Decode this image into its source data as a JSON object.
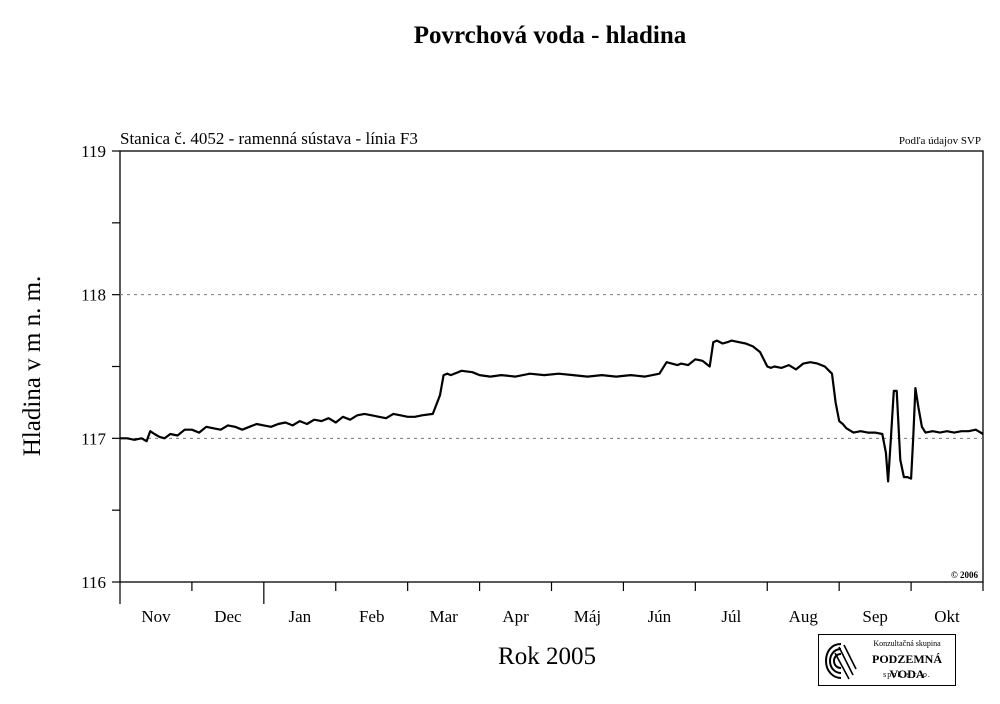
{
  "page_title": "Povrchová voda - hladina",
  "logo": {
    "line1": "Konzultačná skupina",
    "line2": "PODZEMNÁ VODA",
    "line3": "spol. s r. o."
  },
  "chart_data": {
    "type": "line",
    "subtitle": "Stanica č. 4052 - ramenná sústava - línia F3",
    "source_note": "Podľa údajov SVP",
    "copyright": "© 2006",
    "xlabel": "Rok 2005",
    "ylabel": "Hladina v m n. m.",
    "ylim": [
      116,
      119
    ],
    "yticks": [
      116,
      117,
      118,
      119
    ],
    "gridlines_y": [
      117,
      118
    ],
    "xlim": [
      0,
      12
    ],
    "month_labels": [
      "Nov",
      "Dec",
      "Jan",
      "Feb",
      "Mar",
      "Apr",
      "Máj",
      "Jún",
      "Júl",
      "Aug",
      "Sep",
      "Okt"
    ],
    "grid": "dashed horizontal at 117 and 118",
    "series": [
      {
        "color": "#000000",
        "x": [
          0.0,
          0.1,
          0.2,
          0.3,
          0.37,
          0.42,
          0.48,
          0.55,
          0.62,
          0.7,
          0.8,
          0.9,
          1.0,
          1.1,
          1.2,
          1.3,
          1.4,
          1.5,
          1.6,
          1.7,
          1.8,
          1.9,
          2.0,
          2.1,
          2.2,
          2.3,
          2.4,
          2.5,
          2.6,
          2.7,
          2.8,
          2.9,
          3.0,
          3.1,
          3.2,
          3.3,
          3.4,
          3.5,
          3.6,
          3.7,
          3.8,
          3.9,
          4.0,
          4.1,
          4.2,
          4.35,
          4.45,
          4.5,
          4.55,
          4.6,
          4.75,
          4.9,
          5.0,
          5.15,
          5.3,
          5.5,
          5.7,
          5.9,
          6.1,
          6.3,
          6.5,
          6.7,
          6.9,
          7.1,
          7.3,
          7.5,
          7.6,
          7.75,
          7.8,
          7.9,
          8.0,
          8.1,
          8.2,
          8.25,
          8.3,
          8.38,
          8.45,
          8.5,
          8.6,
          8.7,
          8.8,
          8.9,
          9.0,
          9.05,
          9.1,
          9.2,
          9.3,
          9.4,
          9.5,
          9.6,
          9.7,
          9.8,
          9.9,
          9.95,
          10.0,
          10.05,
          10.1,
          10.2,
          10.3,
          10.4,
          10.5,
          10.6,
          10.65,
          10.68,
          10.72,
          10.76,
          10.8,
          10.85,
          10.9,
          10.95,
          11.0,
          11.03,
          11.06,
          11.1,
          11.15,
          11.2,
          11.3,
          11.4,
          11.5,
          11.6,
          11.7,
          11.8,
          11.9,
          12.0
        ],
        "values": [
          117.0,
          117.0,
          116.99,
          117.0,
          116.98,
          117.05,
          117.03,
          117.01,
          117.0,
          117.03,
          117.02,
          117.06,
          117.06,
          117.04,
          117.08,
          117.07,
          117.06,
          117.09,
          117.08,
          117.06,
          117.08,
          117.1,
          117.09,
          117.08,
          117.1,
          117.11,
          117.09,
          117.12,
          117.1,
          117.13,
          117.12,
          117.14,
          117.11,
          117.15,
          117.13,
          117.16,
          117.17,
          117.16,
          117.15,
          117.14,
          117.17,
          117.16,
          117.15,
          117.15,
          117.16,
          117.17,
          117.3,
          117.44,
          117.45,
          117.44,
          117.47,
          117.46,
          117.44,
          117.43,
          117.44,
          117.43,
          117.45,
          117.44,
          117.45,
          117.44,
          117.43,
          117.44,
          117.43,
          117.44,
          117.43,
          117.45,
          117.53,
          117.51,
          117.52,
          117.51,
          117.55,
          117.54,
          117.5,
          117.67,
          117.68,
          117.66,
          117.67,
          117.68,
          117.67,
          117.66,
          117.64,
          117.6,
          117.5,
          117.49,
          117.5,
          117.49,
          117.51,
          117.48,
          117.52,
          117.53,
          117.52,
          117.5,
          117.45,
          117.25,
          117.12,
          117.1,
          117.07,
          117.04,
          117.05,
          117.04,
          117.04,
          117.03,
          116.9,
          116.7,
          117.0,
          117.33,
          117.33,
          116.85,
          116.73,
          116.73,
          116.72,
          117.0,
          117.35,
          117.22,
          117.08,
          117.04,
          117.05,
          117.04,
          117.05,
          117.04,
          117.05,
          117.05,
          117.06,
          117.03
        ]
      }
    ]
  }
}
